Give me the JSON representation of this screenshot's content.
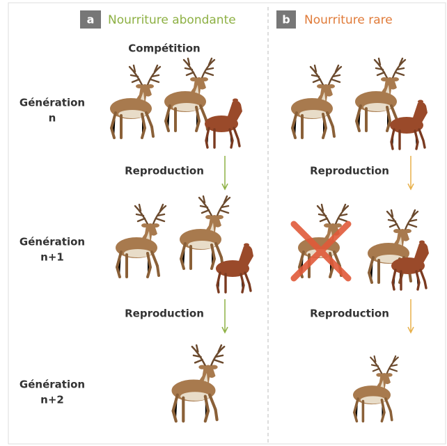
{
  "panels": [
    {
      "letter": "a",
      "title": "Nourriture abondante",
      "competition": "Compétition",
      "reproductions": [
        "Reproduction",
        "Reproduction"
      ]
    },
    {
      "letter": "b",
      "title": "Nourriture rare",
      "reproductions": [
        "Reproduction",
        "Reproduction"
      ]
    }
  ],
  "rows": [
    {
      "label": [
        "Génération",
        "n"
      ]
    },
    {
      "label": [
        "Génération",
        "n+1"
      ]
    },
    {
      "label": [
        "Génération",
        "n+2"
      ]
    }
  ]
}
